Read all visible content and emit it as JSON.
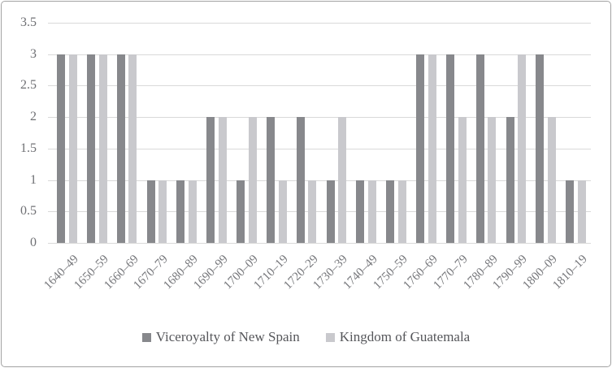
{
  "figure": {
    "background": "#ffffff",
    "border_color": "#a3a3a3"
  },
  "chart_data": {
    "type": "bar",
    "title": "",
    "categories": [
      "1640–49",
      "1650–59",
      "1660–69",
      "1670–79",
      "1680–89",
      "1690–99",
      "1700–09",
      "1710–19",
      "1720–29",
      "1730–39",
      "1740–49",
      "1750–59",
      "1760–69",
      "1770–79",
      "1780–89",
      "1790–99",
      "1800–09",
      "1810–19"
    ],
    "series": [
      {
        "name": "Viceroyalty of New Spain",
        "color": "#87888c",
        "values": [
          3,
          3,
          3,
          1,
          1,
          2,
          1,
          2,
          2,
          1,
          1,
          1,
          3,
          3,
          3,
          2,
          3,
          1
        ]
      },
      {
        "name": "Kingdom of Guatemala",
        "color": "#c9c9cd",
        "values": [
          3,
          3,
          3,
          1,
          1,
          2,
          2,
          1,
          1,
          2,
          1,
          1,
          3,
          2,
          2,
          3,
          2,
          1
        ]
      }
    ],
    "ylim": [
      0,
      3.5
    ],
    "yticks": [
      0,
      0.5,
      1,
      1.5,
      2,
      2.5,
      3,
      3.5
    ],
    "ytick_labels": [
      "0",
      "0.5",
      "1",
      "1.5",
      "2",
      "2.5",
      "3",
      "3.5"
    ],
    "grid": true,
    "gridline_color": "#d9d9d9",
    "axis_label_color": "#6f7074",
    "xlabel": "",
    "ylabel": "",
    "legend_position": "bottom",
    "legend_text_color": "#55565a"
  }
}
